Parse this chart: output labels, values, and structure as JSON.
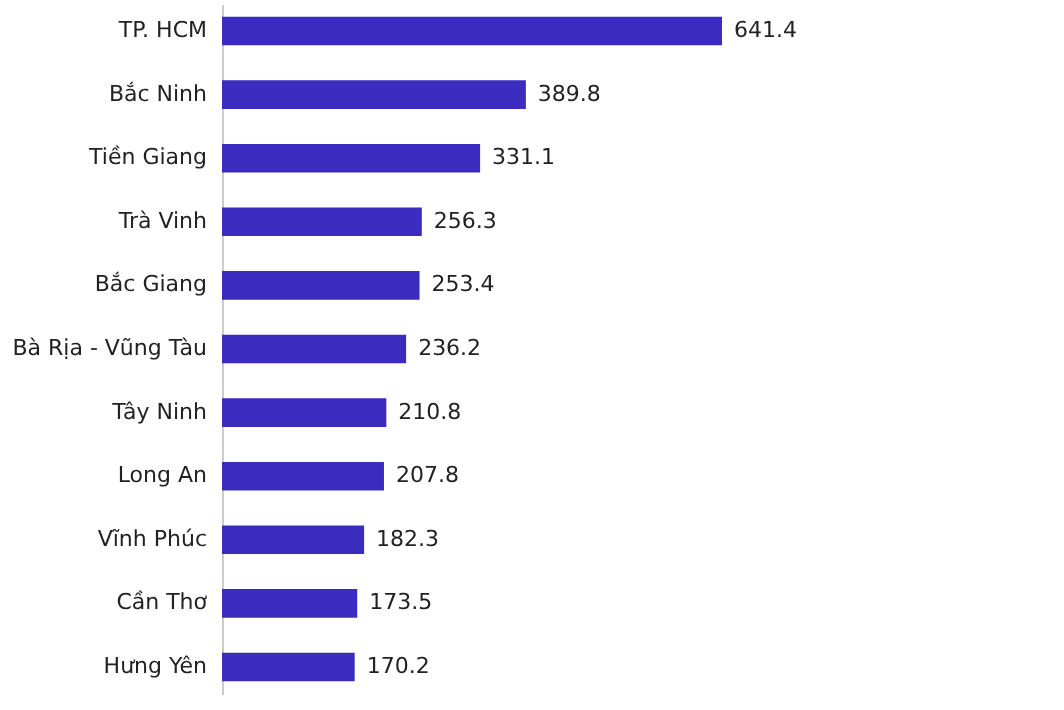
{
  "chart_data": {
    "type": "bar",
    "orientation": "horizontal",
    "data_labels": true,
    "color": "#3b2cbf",
    "categories": [
      "TP. HCM",
      "Bắc Ninh",
      "Tiền Giang",
      "Trà Vinh",
      "Bắc Giang",
      "Bà Rịa - Vũng Tàu",
      "Tây Ninh",
      "Long An",
      "Vĩnh Phúc",
      "Cần Thơ",
      "Hưng Yên"
    ],
    "values": [
      641.4,
      389.8,
      331.1,
      256.3,
      253.4,
      236.2,
      210.8,
      207.8,
      182.3,
      173.5,
      170.2
    ]
  }
}
